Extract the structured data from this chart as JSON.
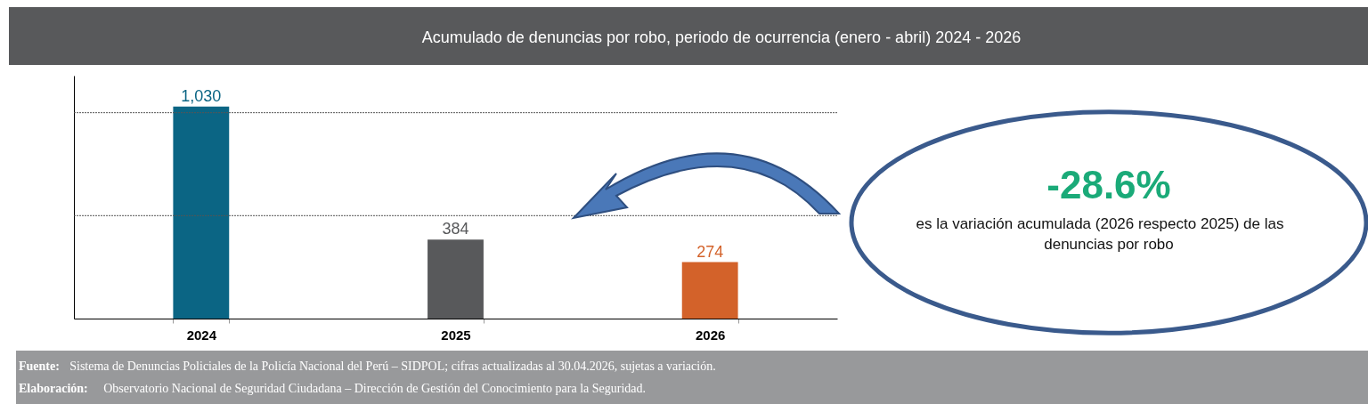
{
  "chart_data": {
    "type": "bar",
    "title": "Acumulado de denuncias por robo, periodo de ocurrencia (enero - abril) 2024 - 2026",
    "categories": [
      "2024",
      "2025",
      "2026"
    ],
    "values": [
      1030,
      384,
      274
    ],
    "colors": [
      "#0b6584",
      "#58595b",
      "#d3622a"
    ],
    "value_labels": [
      "1,030",
      "384",
      "274"
    ],
    "ylim": [
      0,
      1180
    ],
    "ref_lines": [
      {
        "axis": "y",
        "value": 500,
        "line_style": "dotted",
        "color": "#555555"
      },
      {
        "axis": "y",
        "value": 1000,
        "line_style": "dotted",
        "color": "#555555"
      }
    ],
    "annotations": [
      "-28.6%",
      "es la variación acumulada (2026 respecto 2025) de las",
      "denuncias por robo",
      "Fuente: Sistema de Denuncias Policiales de la Policía Nacional del Perú – SIDPOL; cifras actualizadas al 30.04.2026, sujetas a variación.",
      "Elaboración: Observatorio Nacional de Seguridad Ciudadana – Dirección de Gestión del Conocimiento para la Seguridad."
    ]
  }
}
